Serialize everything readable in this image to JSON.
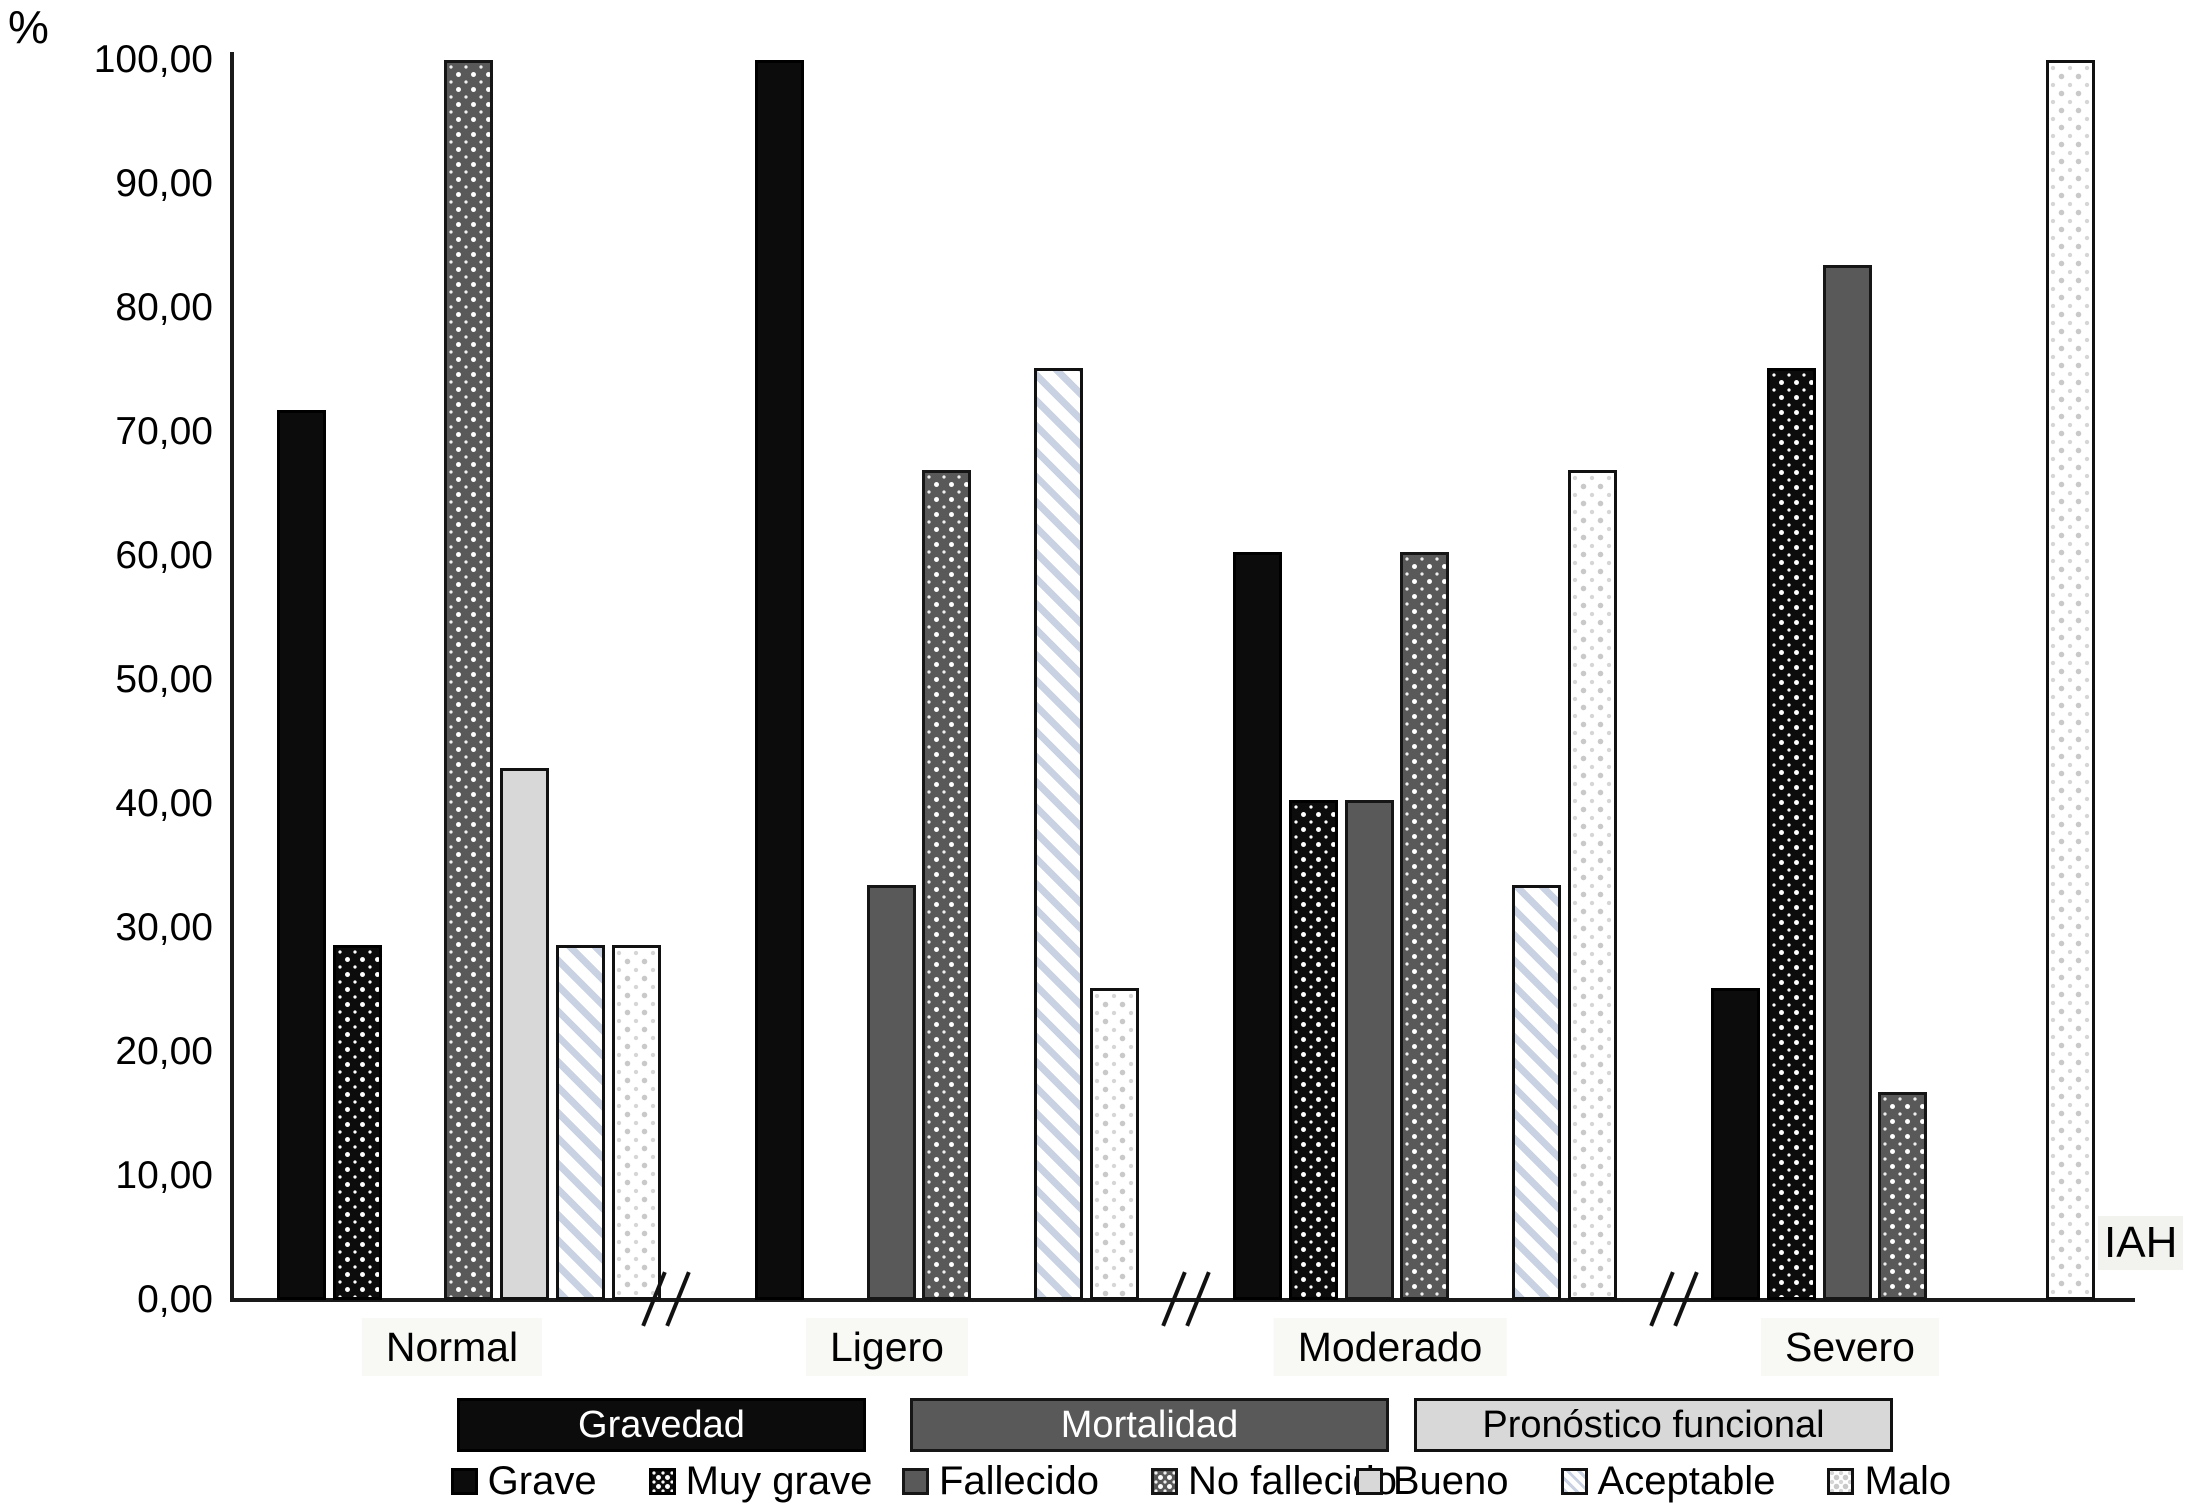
{
  "chart_data": {
    "type": "bar",
    "title": "",
    "ylabel": "%",
    "xlabel": "IAH",
    "ylim": [
      0,
      100
    ],
    "grid": false,
    "legend_position": "bottom",
    "axis_breaks_between_groups": true,
    "yticks": [
      {
        "value": 0,
        "label": "0,00"
      },
      {
        "value": 10,
        "label": "10,00"
      },
      {
        "value": 20,
        "label": "20,00"
      },
      {
        "value": 30,
        "label": "30,00"
      },
      {
        "value": 40,
        "label": "40,00"
      },
      {
        "value": 50,
        "label": "50,00"
      },
      {
        "value": 60,
        "label": "60,00"
      },
      {
        "value": 70,
        "label": "70,00"
      },
      {
        "value": 80,
        "label": "80,00"
      },
      {
        "value": 90,
        "label": "90,00"
      },
      {
        "value": 100,
        "label": "100,00"
      }
    ],
    "categories": [
      "Normal",
      "Ligero",
      "Moderado",
      "Severo"
    ],
    "series": [
      {
        "name": "Grave",
        "legend_group": "Gravedad",
        "pattern": "solid-black",
        "values": [
          71.8,
          100.0,
          60.3,
          25.2
        ]
      },
      {
        "name": "Muy grave",
        "legend_group": "Gravedad",
        "pattern": "dots-on-black",
        "values": [
          28.6,
          0,
          40.3,
          75.2
        ]
      },
      {
        "name": "Fallecido",
        "legend_group": "Mortalidad",
        "pattern": "solid-darkgray",
        "values": [
          0,
          33.5,
          40.3,
          83.5
        ]
      },
      {
        "name": "No fallecido",
        "legend_group": "Mortalidad",
        "pattern": "dots-on-darkgray",
        "values": [
          100.0,
          66.9,
          60.3,
          16.8
        ]
      },
      {
        "name": "Bueno",
        "legend_group": "Pronóstico funcional",
        "pattern": "solid-lightgray",
        "values": [
          42.9,
          0,
          0,
          0
        ]
      },
      {
        "name": "Aceptable",
        "legend_group": "Pronóstico funcional",
        "pattern": "diagonal-hatch",
        "values": [
          28.6,
          75.2,
          33.5,
          0
        ]
      },
      {
        "name": "Malo",
        "legend_group": "Pronóstico funcional",
        "pattern": "light-dots",
        "values": [
          28.6,
          25.2,
          66.9,
          100.0
        ]
      }
    ],
    "legend_groups": [
      {
        "label": "Gravedad",
        "pattern": "solid-black",
        "text_color": "#ffffff"
      },
      {
        "label": "Mortalidad",
        "pattern": "solid-darkgray",
        "text_color": "#ffffff"
      },
      {
        "label": "Pronóstico funcional",
        "pattern": "solid-lightgray",
        "text_color": "#000000"
      }
    ],
    "legend_items": [
      {
        "label": "Grave",
        "pattern": "solid-black",
        "group_index": 0
      },
      {
        "label": "Muy grave",
        "pattern": "dots-on-black",
        "group_index": 0
      },
      {
        "label": "Fallecido",
        "pattern": "solid-darkgray",
        "group_index": 1
      },
      {
        "label": "No fallecido",
        "pattern": "dots-on-darkgray",
        "group_index": 1
      },
      {
        "label": "Bueno",
        "pattern": "solid-lightgray",
        "group_index": 2
      },
      {
        "label": "Aceptable",
        "pattern": "diagonal-hatch",
        "group_index": 2
      },
      {
        "label": "Malo",
        "pattern": "light-dots",
        "group_index": 2
      }
    ]
  },
  "colors": {
    "black": "#0c0c0c",
    "dark_gray": "#595959",
    "light_gray": "#d8d8d8",
    "hatch_stripe": "#c9d2e2",
    "light_dot": "#c9c9c9",
    "axis": "#1a1a1a",
    "label_band": "#f8f8f4"
  }
}
